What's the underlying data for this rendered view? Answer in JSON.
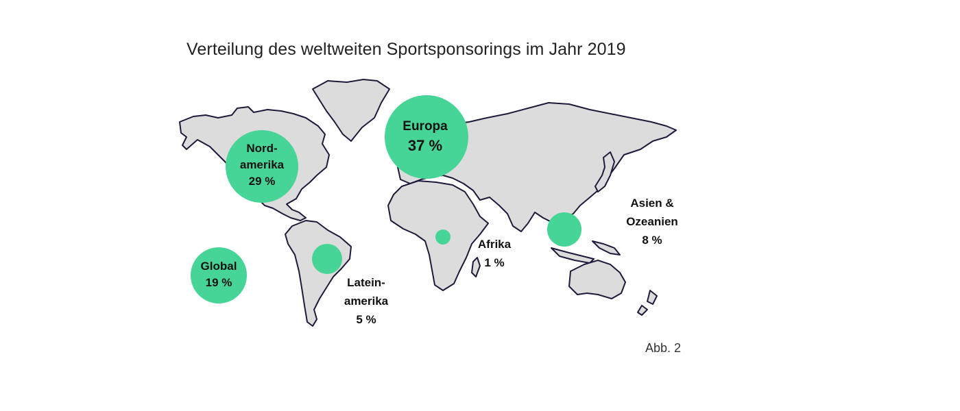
{
  "title": "Verteilung des weltweiten Sportsponsorings im Jahr 2019",
  "caption": "Abb. 2",
  "colors": {
    "bubble": "#46d596",
    "land": "#dcdcdc",
    "outline": "#1c1a3a"
  },
  "regions": [
    {
      "id": "europa",
      "lines": [
        "Europa",
        "37 %"
      ],
      "share": 37
    },
    {
      "id": "nordamerika",
      "lines": [
        "Nord-",
        "amerika",
        "29 %"
      ],
      "share": 29
    },
    {
      "id": "global",
      "lines": [
        "Global",
        "19 %"
      ],
      "share": 19
    },
    {
      "id": "asien",
      "lines": [
        "Asien &",
        "Ozeanien",
        "8 %"
      ],
      "share": 8
    },
    {
      "id": "lateinamerika",
      "lines": [
        "Latein-",
        "amerika",
        "5 %"
      ],
      "share": 5
    },
    {
      "id": "afrika",
      "lines": [
        "Afrika",
        "1 %"
      ],
      "share": 1
    }
  ]
}
